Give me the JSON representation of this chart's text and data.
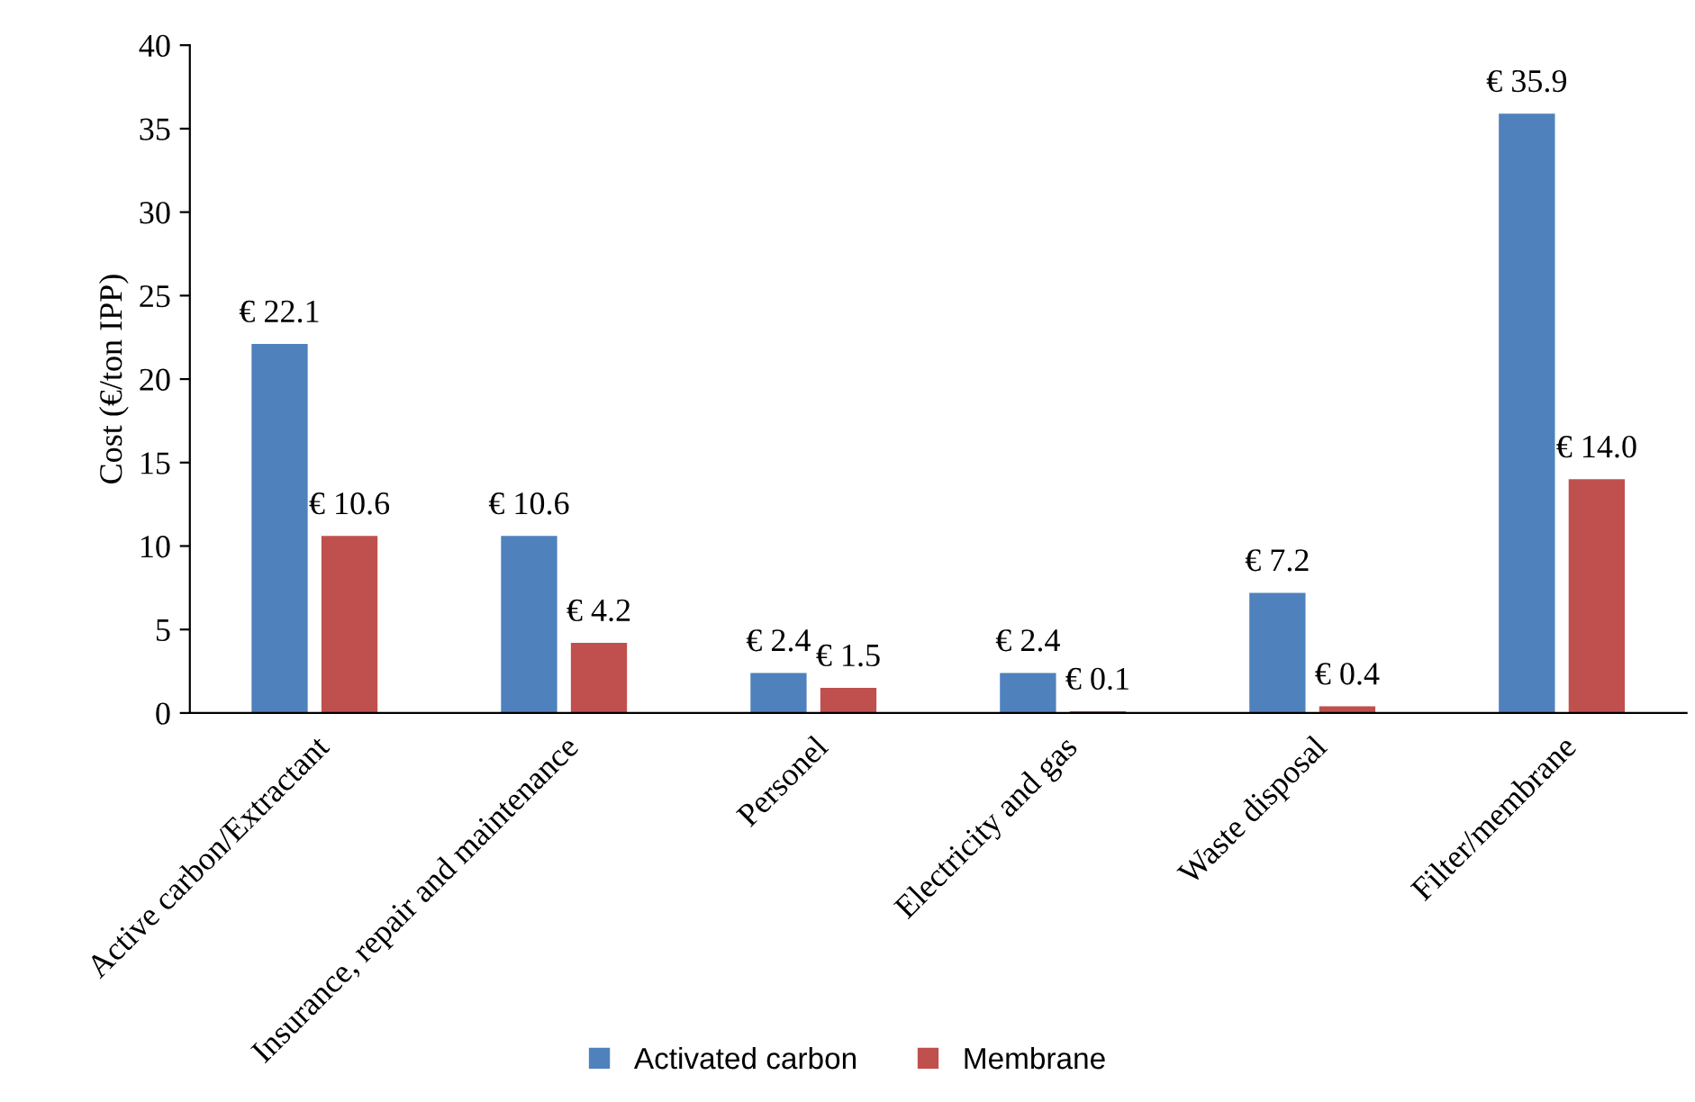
{
  "chart_data": {
    "type": "bar",
    "ylabel": "Cost (€/ton IPP)",
    "categories": [
      "Active carbon/Extractant",
      "Insurance, repair and maintenance",
      "Personel",
      "Electricity and gas",
      "Waste disposal",
      "Filter/membrane"
    ],
    "series": [
      {
        "name": "Activated carbon",
        "color": "#4f81bd",
        "values": [
          22.1,
          10.6,
          2.4,
          2.4,
          7.2,
          35.9
        ],
        "value_labels": [
          "€ 22.1",
          "€ 10.6",
          "€ 2.4",
          "€ 2.4",
          "€ 7.2",
          "€ 35.9"
        ]
      },
      {
        "name": "Membrane",
        "color": "#c0504d",
        "values": [
          10.6,
          4.2,
          1.5,
          0.1,
          0.4,
          14.0
        ],
        "value_labels": [
          "€ 10.6",
          "€ 4.2",
          "€ 1.5",
          "€ 0.1",
          "€ 0.4",
          "€ 14.0"
        ]
      }
    ],
    "ylim": [
      0,
      40
    ],
    "yticks": [
      0,
      5,
      10,
      15,
      20,
      25,
      30,
      35,
      40
    ],
    "grid": false,
    "legend": "bottom"
  }
}
